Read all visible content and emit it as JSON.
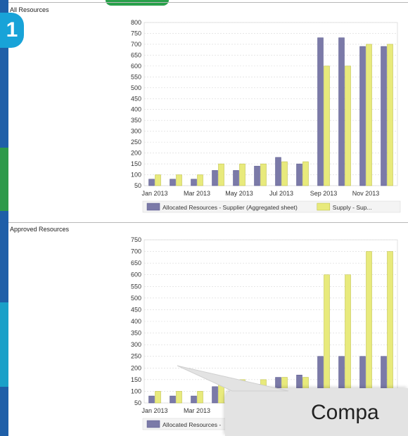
{
  "colors": {
    "allocated": "#7b7aa8",
    "supply": "#e8ea7c",
    "allocated_stroke": "#55548a",
    "supply_stroke": "#b8ba3a"
  },
  "panels": [
    {
      "title": "All Resources"
    },
    {
      "title": "Approved Resources"
    }
  ],
  "callout": {
    "text": "Compa"
  },
  "chart_data": [
    {
      "type": "bar",
      "title": "All Resources",
      "categories": [
        "Jan 2013",
        "Feb 2013",
        "Mar 2013",
        "Apr 2013",
        "May 2013",
        "Jun 2013",
        "Jul 2013",
        "Aug 2013",
        "Sep 2013",
        "Oct 2013",
        "Nov 2013",
        "Dec 2013"
      ],
      "tick_labels": [
        "Jan 2013",
        "Mar 2013",
        "May 2013",
        "Jul 2013",
        "Sep 2013",
        "Nov 2013"
      ],
      "y_ticks": [
        50,
        100,
        150,
        200,
        250,
        300,
        350,
        400,
        450,
        500,
        550,
        600,
        650,
        700,
        750,
        800
      ],
      "ylim": [
        50,
        800
      ],
      "grid": true,
      "legend_placement": "bottom",
      "series": [
        {
          "name": "Allocated Resources - Supplier (Aggregated sheet)",
          "values": [
            80,
            80,
            80,
            120,
            120,
            140,
            180,
            150,
            730,
            730,
            690,
            690
          ]
        },
        {
          "name": "Supply - Sup...",
          "values": [
            100,
            100,
            100,
            150,
            150,
            150,
            160,
            160,
            600,
            600,
            700,
            700
          ]
        }
      ]
    },
    {
      "type": "bar",
      "title": "Approved Resources",
      "categories": [
        "Jan 2013",
        "Feb 2013",
        "Mar 2013",
        "Apr 2013",
        "May 2013",
        "Jun 2013",
        "Jul 2013",
        "Aug 2013",
        "Sep 2013",
        "Oct 2013",
        "Nov 2013",
        "Dec 2013"
      ],
      "tick_labels": [
        "Jan 2013",
        "Mar 2013"
      ],
      "y_ticks": [
        50,
        100,
        150,
        200,
        250,
        300,
        350,
        400,
        450,
        500,
        550,
        600,
        650,
        700,
        750
      ],
      "ylim": [
        50,
        750
      ],
      "grid": true,
      "legend_placement": "bottom",
      "series": [
        {
          "name": "Allocated Resources - ",
          "values": [
            80,
            80,
            80,
            120,
            120,
            130,
            160,
            170,
            250,
            250,
            250,
            250
          ]
        },
        {
          "name": "",
          "values": [
            100,
            100,
            100,
            150,
            150,
            150,
            160,
            160,
            600,
            600,
            700,
            700
          ]
        }
      ]
    }
  ]
}
